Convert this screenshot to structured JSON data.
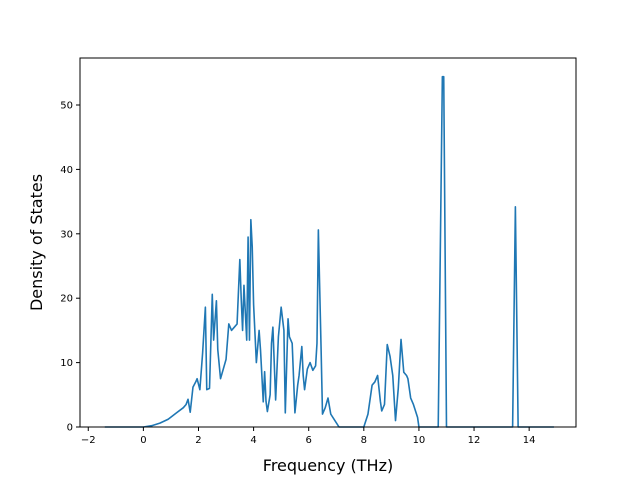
{
  "chart_data": {
    "type": "line",
    "title": "",
    "xlabel": "Frequency (THz)",
    "ylabel": "Density of States",
    "xlim": [
      -2.3,
      15.7
    ],
    "ylim": [
      0,
      57.3
    ],
    "grid": false,
    "legend": "none",
    "x_ticks": [
      -2,
      0,
      2,
      4,
      6,
      8,
      10,
      12,
      14
    ],
    "y_ticks": [
      0,
      10,
      20,
      30,
      40,
      50
    ],
    "x_tick_labels": [
      "−2",
      "0",
      "2",
      "4",
      "6",
      "8",
      "10",
      "12",
      "14"
    ],
    "y_tick_labels": [
      "0",
      "10",
      "20",
      "30",
      "40",
      "50"
    ],
    "series": [
      {
        "name": "",
        "color": "#1f77b4",
        "x": [
          -1.4,
          -0.5,
          0,
          0.3,
          0.6,
          0.9,
          1.2,
          1.45,
          1.55,
          1.62,
          1.7,
          1.8,
          1.9,
          1.95,
          2.05,
          2.15,
          2.25,
          2.3,
          2.4,
          2.5,
          2.55,
          2.65,
          2.7,
          2.8,
          2.9,
          3.0,
          3.1,
          3.2,
          3.3,
          3.4,
          3.5,
          3.55,
          3.6,
          3.65,
          3.75,
          3.8,
          3.85,
          3.9,
          3.95,
          4.0,
          4.1,
          4.2,
          4.25,
          4.3,
          4.35,
          4.4,
          4.45,
          4.5,
          4.6,
          4.65,
          4.7,
          4.8,
          4.9,
          5.0,
          5.1,
          5.15,
          5.25,
          5.3,
          5.4,
          5.5,
          5.6,
          5.65,
          5.75,
          5.8,
          5.85,
          5.95,
          6.05,
          6.15,
          6.25,
          6.3,
          6.35,
          6.45,
          6.5,
          6.6,
          6.7,
          6.8,
          6.95,
          7.1,
          7.5,
          8.0,
          8.15,
          8.3,
          8.4,
          8.5,
          8.6,
          8.65,
          8.75,
          8.85,
          8.95,
          9.05,
          9.15,
          9.25,
          9.35,
          9.45,
          9.55,
          9.6,
          9.7,
          9.8,
          9.95,
          10.0,
          10.7,
          10.85,
          10.9,
          11.0,
          11.05,
          11.2,
          12.5,
          13.4,
          13.5,
          13.6,
          14.0,
          14.9
        ],
        "y": [
          0,
          0,
          0,
          0.2,
          0.6,
          1.2,
          2.2,
          3.0,
          3.5,
          4.3,
          2.3,
          6.2,
          7.0,
          7.5,
          5.8,
          11.5,
          18.6,
          5.8,
          6.0,
          20.6,
          13.5,
          19.6,
          12.0,
          7.5,
          9.0,
          10.5,
          16.0,
          15.0,
          15.5,
          16.0,
          26.0,
          20.0,
          15.0,
          22.0,
          13.5,
          29.5,
          13.5,
          32.2,
          28.0,
          19.0,
          10.0,
          15.0,
          12.0,
          8.0,
          3.9,
          8.6,
          4.0,
          2.4,
          5.0,
          13.0,
          15.5,
          4.2,
          14.0,
          18.6,
          15.0,
          2.2,
          16.8,
          14.0,
          13.0,
          2.2,
          6.5,
          8.0,
          12.5,
          8.0,
          5.8,
          9.0,
          10.0,
          8.8,
          9.5,
          13.0,
          30.6,
          12.0,
          2.0,
          3.0,
          4.5,
          2.0,
          1.0,
          0,
          0,
          0,
          2.0,
          6.5,
          7.0,
          8.0,
          4.0,
          2.5,
          3.5,
          12.8,
          11.0,
          8.0,
          1.0,
          6.0,
          13.6,
          8.5,
          8.0,
          7.5,
          4.5,
          3.5,
          1.5,
          0,
          0,
          54.4,
          54.4,
          0,
          0,
          0,
          0,
          0,
          34.2,
          0,
          0,
          0
        ]
      }
    ]
  }
}
